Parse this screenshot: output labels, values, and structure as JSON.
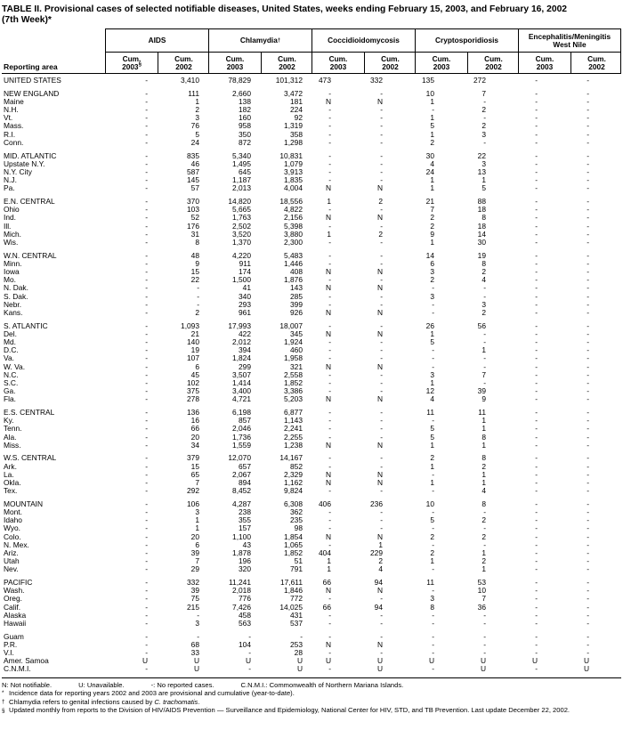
{
  "title": {
    "line1": "TABLE II. Provisional cases of selected notifiable diseases, United States, weeks ending February 15, 2003, and February 16, 2002",
    "line2": "(7th Week)*"
  },
  "reporting_area_label": "Reporting area",
  "column_groups": [
    {
      "label": "AIDS",
      "sup": "",
      "cols": [
        {
          "l1": "Cum.",
          "l2": "2003",
          "sup": "§"
        },
        {
          "l1": "Cum.",
          "l2": "2002",
          "sup": ""
        }
      ]
    },
    {
      "label": "Chlamydia",
      "sup": "†",
      "cols": [
        {
          "l1": "Cum.",
          "l2": "2003",
          "sup": ""
        },
        {
          "l1": "Cum.",
          "l2": "2002",
          "sup": ""
        }
      ]
    },
    {
      "label": "Coccidioidomycosis",
      "sup": "",
      "cols": [
        {
          "l1": "Cum.",
          "l2": "2003",
          "sup": ""
        },
        {
          "l1": "Cum.",
          "l2": "2002",
          "sup": ""
        }
      ]
    },
    {
      "label": "Cryptosporidiosis",
      "sup": "",
      "cols": [
        {
          "l1": "Cum.",
          "l2": "2003",
          "sup": ""
        },
        {
          "l1": "Cum.",
          "l2": "2002",
          "sup": ""
        }
      ]
    },
    {
      "label": "Encephalitis/Meningitis\nWest Nile",
      "sup": "",
      "cols": [
        {
          "l1": "Cum.",
          "l2": "2003",
          "sup": ""
        },
        {
          "l1": "Cum.",
          "l2": "2002",
          "sup": ""
        }
      ]
    }
  ],
  "sections": [
    {
      "rows": [
        [
          "UNITED STATES",
          "-",
          "3,410",
          "78,829",
          "101,312",
          "473",
          "332",
          "135",
          "272",
          "-",
          "-"
        ]
      ]
    },
    {
      "rows": [
        [
          "NEW ENGLAND",
          "-",
          "111",
          "2,660",
          "3,472",
          "-",
          "-",
          "10",
          "7",
          "-",
          "-"
        ],
        [
          "Maine",
          "-",
          "1",
          "138",
          "181",
          "N",
          "N",
          "1",
          "-",
          "-",
          "-"
        ],
        [
          "N.H.",
          "-",
          "2",
          "182",
          "224",
          "-",
          "-",
          "-",
          "2",
          "-",
          "-"
        ],
        [
          "Vt.",
          "-",
          "3",
          "160",
          "92",
          "-",
          "-",
          "1",
          "-",
          "-",
          "-"
        ],
        [
          "Mass.",
          "-",
          "76",
          "958",
          "1,319",
          "-",
          "-",
          "5",
          "2",
          "-",
          "-"
        ],
        [
          "R.I.",
          "-",
          "5",
          "350",
          "358",
          "-",
          "-",
          "1",
          "3",
          "-",
          "-"
        ],
        [
          "Conn.",
          "-",
          "24",
          "872",
          "1,298",
          "-",
          "-",
          "2",
          "-",
          "-",
          "-"
        ]
      ]
    },
    {
      "rows": [
        [
          "MID. ATLANTIC",
          "-",
          "835",
          "5,340",
          "10,831",
          "-",
          "-",
          "30",
          "22",
          "-",
          "-"
        ],
        [
          "Upstate N.Y.",
          "-",
          "46",
          "1,495",
          "1,079",
          "-",
          "-",
          "4",
          "3",
          "-",
          "-"
        ],
        [
          "N.Y. City",
          "-",
          "587",
          "645",
          "3,913",
          "-",
          "-",
          "24",
          "13",
          "-",
          "-"
        ],
        [
          "N.J.",
          "-",
          "145",
          "1,187",
          "1,835",
          "-",
          "-",
          "1",
          "1",
          "-",
          "-"
        ],
        [
          "Pa.",
          "-",
          "57",
          "2,013",
          "4,004",
          "N",
          "N",
          "1",
          "5",
          "-",
          "-"
        ]
      ]
    },
    {
      "rows": [
        [
          "E.N. CENTRAL",
          "-",
          "370",
          "14,820",
          "18,556",
          "1",
          "2",
          "21",
          "88",
          "-",
          "-"
        ],
        [
          "Ohio",
          "-",
          "103",
          "5,665",
          "4,822",
          "-",
          "-",
          "7",
          "18",
          "-",
          "-"
        ],
        [
          "Ind.",
          "-",
          "52",
          "1,763",
          "2,156",
          "N",
          "N",
          "2",
          "8",
          "-",
          "-"
        ],
        [
          "Ill.",
          "-",
          "176",
          "2,502",
          "5,398",
          "-",
          "-",
          "2",
          "18",
          "-",
          "-"
        ],
        [
          "Mich.",
          "-",
          "31",
          "3,520",
          "3,880",
          "1",
          "2",
          "9",
          "14",
          "-",
          "-"
        ],
        [
          "Wis.",
          "-",
          "8",
          "1,370",
          "2,300",
          "-",
          "-",
          "1",
          "30",
          "-",
          "-"
        ]
      ]
    },
    {
      "rows": [
        [
          "W.N. CENTRAL",
          "-",
          "48",
          "4,220",
          "5,483",
          "-",
          "-",
          "14",
          "19",
          "-",
          "-"
        ],
        [
          "Minn.",
          "-",
          "9",
          "911",
          "1,446",
          "-",
          "-",
          "6",
          "8",
          "-",
          "-"
        ],
        [
          "Iowa",
          "-",
          "15",
          "174",
          "408",
          "N",
          "N",
          "3",
          "2",
          "-",
          "-"
        ],
        [
          "Mo.",
          "-",
          "22",
          "1,500",
          "1,876",
          "-",
          "-",
          "2",
          "4",
          "-",
          "-"
        ],
        [
          "N. Dak.",
          "-",
          "-",
          "41",
          "143",
          "N",
          "N",
          "-",
          "-",
          "-",
          "-"
        ],
        [
          "S. Dak.",
          "-",
          "-",
          "340",
          "285",
          "-",
          "-",
          "3",
          "-",
          "-",
          "-"
        ],
        [
          "Nebr.",
          "-",
          "-",
          "293",
          "399",
          "-",
          "-",
          "-",
          "3",
          "-",
          "-"
        ],
        [
          "Kans.",
          "-",
          "2",
          "961",
          "926",
          "N",
          "N",
          "-",
          "2",
          "-",
          "-"
        ]
      ]
    },
    {
      "rows": [
        [
          "S. ATLANTIC",
          "-",
          "1,093",
          "17,993",
          "18,007",
          "-",
          "-",
          "26",
          "56",
          "-",
          "-"
        ],
        [
          "Del.",
          "-",
          "21",
          "422",
          "345",
          "N",
          "N",
          "1",
          "-",
          "-",
          "-"
        ],
        [
          "Md.",
          "-",
          "140",
          "2,012",
          "1,924",
          "-",
          "-",
          "5",
          "-",
          "-",
          "-"
        ],
        [
          "D.C.",
          "-",
          "19",
          "394",
          "460",
          "-",
          "-",
          "-",
          "1",
          "-",
          "-"
        ],
        [
          "Va.",
          "-",
          "107",
          "1,824",
          "1,958",
          "-",
          "-",
          "-",
          "-",
          "-",
          "-"
        ],
        [
          "W. Va.",
          "-",
          "6",
          "299",
          "321",
          "N",
          "N",
          "-",
          "-",
          "-",
          "-"
        ],
        [
          "N.C.",
          "-",
          "45",
          "3,507",
          "2,558",
          "-",
          "-",
          "3",
          "7",
          "-",
          "-"
        ],
        [
          "S.C.",
          "-",
          "102",
          "1,414",
          "1,852",
          "-",
          "-",
          "1",
          "-",
          "-",
          "-"
        ],
        [
          "Ga.",
          "-",
          "375",
          "3,400",
          "3,386",
          "-",
          "-",
          "12",
          "39",
          "-",
          "-"
        ],
        [
          "Fla.",
          "-",
          "278",
          "4,721",
          "5,203",
          "N",
          "N",
          "4",
          "9",
          "-",
          "-"
        ]
      ]
    },
    {
      "rows": [
        [
          "E.S. CENTRAL",
          "-",
          "136",
          "6,198",
          "6,877",
          "-",
          "-",
          "11",
          "11",
          "-",
          "-"
        ],
        [
          "Ky.",
          "-",
          "16",
          "857",
          "1,143",
          "-",
          "-",
          "-",
          "1",
          "-",
          "-"
        ],
        [
          "Tenn.",
          "-",
          "66",
          "2,046",
          "2,241",
          "-",
          "-",
          "5",
          "1",
          "-",
          "-"
        ],
        [
          "Ala.",
          "-",
          "20",
          "1,736",
          "2,255",
          "-",
          "-",
          "5",
          "8",
          "-",
          "-"
        ],
        [
          "Miss.",
          "-",
          "34",
          "1,559",
          "1,238",
          "N",
          "N",
          "1",
          "1",
          "-",
          "-"
        ]
      ]
    },
    {
      "rows": [
        [
          "W.S. CENTRAL",
          "-",
          "379",
          "12,070",
          "14,167",
          "-",
          "-",
          "2",
          "8",
          "-",
          "-"
        ],
        [
          "Ark.",
          "-",
          "15",
          "657",
          "852",
          "-",
          "-",
          "1",
          "2",
          "-",
          "-"
        ],
        [
          "La.",
          "-",
          "65",
          "2,067",
          "2,329",
          "N",
          "N",
          "-",
          "1",
          "-",
          "-"
        ],
        [
          "Okla.",
          "-",
          "7",
          "894",
          "1,162",
          "N",
          "N",
          "1",
          "1",
          "-",
          "-"
        ],
        [
          "Tex.",
          "-",
          "292",
          "8,452",
          "9,824",
          "-",
          "-",
          "-",
          "4",
          "-",
          "-"
        ]
      ]
    },
    {
      "rows": [
        [
          "MOUNTAIN",
          "-",
          "106",
          "4,287",
          "6,308",
          "406",
          "236",
          "10",
          "8",
          "-",
          "-"
        ],
        [
          "Mont.",
          "-",
          "3",
          "238",
          "362",
          "-",
          "-",
          "-",
          "-",
          "-",
          "-"
        ],
        [
          "Idaho",
          "-",
          "1",
          "355",
          "235",
          "-",
          "-",
          "5",
          "2",
          "-",
          "-"
        ],
        [
          "Wyo.",
          "-",
          "1",
          "157",
          "98",
          "-",
          "-",
          "-",
          "-",
          "-",
          "-"
        ],
        [
          "Colo.",
          "-",
          "20",
          "1,100",
          "1,854",
          "N",
          "N",
          "2",
          "2",
          "-",
          "-"
        ],
        [
          "N. Mex.",
          "-",
          "6",
          "43",
          "1,065",
          "-",
          "1",
          "-",
          "-",
          "-",
          "-"
        ],
        [
          "Ariz.",
          "-",
          "39",
          "1,878",
          "1,852",
          "404",
          "229",
          "2",
          "1",
          "-",
          "-"
        ],
        [
          "Utah",
          "-",
          "7",
          "196",
          "51",
          "1",
          "2",
          "1",
          "2",
          "-",
          "-"
        ],
        [
          "Nev.",
          "-",
          "29",
          "320",
          "791",
          "1",
          "4",
          "-",
          "1",
          "-",
          "-"
        ]
      ]
    },
    {
      "rows": [
        [
          "PACIFIC",
          "-",
          "332",
          "11,241",
          "17,611",
          "66",
          "94",
          "11",
          "53",
          "-",
          "-"
        ],
        [
          "Wash.",
          "-",
          "39",
          "2,018",
          "1,846",
          "N",
          "N",
          "-",
          "10",
          "-",
          "-"
        ],
        [
          "Oreg.",
          "-",
          "75",
          "776",
          "772",
          "-",
          "-",
          "3",
          "7",
          "-",
          "-"
        ],
        [
          "Calif.",
          "-",
          "215",
          "7,426",
          "14,025",
          "66",
          "94",
          "8",
          "36",
          "-",
          "-"
        ],
        [
          "Alaska",
          "-",
          "-",
          "458",
          "431",
          "-",
          "-",
          "-",
          "-",
          "-",
          "-"
        ],
        [
          "Hawaii",
          "-",
          "3",
          "563",
          "537",
          "-",
          "-",
          "-",
          "-",
          "-",
          "-"
        ]
      ]
    },
    {
      "rows": [
        [
          "Guam",
          "-",
          "-",
          "-",
          "-",
          "-",
          "-",
          "-",
          "-",
          "-",
          "-"
        ],
        [
          "P.R.",
          "-",
          "68",
          "104",
          "253",
          "N",
          "N",
          "-",
          "-",
          "-",
          "-"
        ],
        [
          "V.I.",
          "-",
          "33",
          "-",
          "28",
          "-",
          "-",
          "-",
          "-",
          "-",
          "-"
        ],
        [
          "Amer. Samoa",
          "U",
          "U",
          "U",
          "U",
          "U",
          "U",
          "U",
          "U",
          "U",
          "U"
        ],
        [
          "C.N.M.I.",
          "-",
          "U",
          "-",
          "U",
          "-",
          "U",
          "-",
          "U",
          "-",
          "U"
        ]
      ]
    }
  ],
  "footnotes": {
    "legend": [
      "N: Not notifiable.",
      "U: Unavailable.",
      "-: No reported cases.",
      "C.N.M.I.: Commonwealth of Northern Mariana Islands."
    ],
    "notes": [
      {
        "marker": "*",
        "parts": [
          {
            "t": "Incidence data for reporting years 2002 and 2003 are provisional and cumulative (year-to-date)."
          }
        ]
      },
      {
        "marker": "†",
        "parts": [
          {
            "t": "Chlamydia refers to genital infections caused by "
          },
          {
            "t": "C. trachomatis",
            "i": true
          },
          {
            "t": "."
          }
        ]
      },
      {
        "marker": "§",
        "parts": [
          {
            "t": "Updated monthly from reports to the Division of HIV/AIDS Prevention — Surveillance and Epidemiology, National Center for HIV, STD, and TB Prevention. Last update December 22, 2002."
          }
        ]
      }
    ]
  }
}
